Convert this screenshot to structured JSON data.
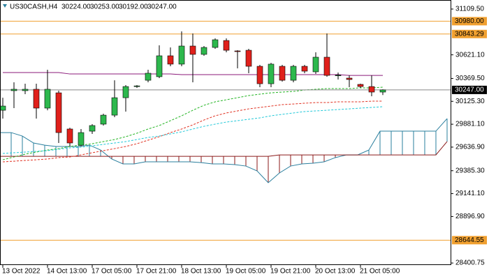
{
  "chart_data": {
    "type": "candlestick",
    "symbol": "US30CASH,H4",
    "header_values": [
      "30224.00",
      "30253.00",
      "30192.00",
      "30247.00"
    ],
    "categories": [
      "13 Oct 2022",
      null,
      null,
      null,
      "14 Oct 13:00",
      null,
      null,
      null,
      "17 Oct 05:00",
      null,
      null,
      null,
      "17 Oct 21:00",
      null,
      null,
      null,
      "18 Oct 13:00",
      null,
      null,
      null,
      "19 Oct 05:00",
      null,
      null,
      null,
      "19 Oct 21:00",
      null,
      null,
      null,
      "20 Oct 13:00",
      null,
      null,
      null,
      "21 Oct 05:00",
      null,
      null
    ],
    "open": [
      30030,
      30239,
      30239,
      30254,
      30053,
      30216,
      29830,
      29658,
      29807,
      29882,
      29978,
      30164,
      30283,
      30350,
      30388,
      30611,
      30522,
      30715,
      30626,
      30700,
      30774,
      30663,
      30670,
      30499,
      30313,
      30499,
      30350,
      30499,
      30440,
      30596,
      30402,
      30373,
      30306,
      30283,
      30224
    ],
    "high": [
      30164,
      30328,
      30313,
      30313,
      30462,
      30239,
      29844,
      29830,
      29882,
      29993,
      30350,
      30298,
      30298,
      30462,
      30722,
      30700,
      30871,
      30849,
      30715,
      30797,
      30797,
      30670,
      30685,
      30514,
      30536,
      30514,
      30514,
      30514,
      30648,
      30849,
      30432,
      30402,
      30313,
      30402,
      30253
    ],
    "low": [
      29941,
      30053,
      30202,
      29941,
      30030,
      29681,
      29644,
      29644,
      29778,
      29867,
      29956,
      30016,
      30269,
      30328,
      30373,
      30499,
      30499,
      30328,
      30611,
      30685,
      30648,
      30477,
      30425,
      30276,
      30276,
      30336,
      30328,
      30425,
      30417,
      30388,
      30358,
      30276,
      30269,
      30179,
      30192
    ],
    "close": [
      30075,
      30254,
      30254,
      30053,
      30254,
      29792,
      29681,
      29792,
      29867,
      29978,
      30164,
      30283,
      30290,
      30425,
      30611,
      30522,
      30715,
      30626,
      30700,
      30782,
      30670,
      30660,
      30499,
      30313,
      30522,
      30350,
      30499,
      30447,
      30596,
      30402,
      30405,
      30358,
      30283,
      30224,
      30247
    ],
    "up_color": "#2db84d",
    "down_color": "#e0201b",
    "overlays": [
      {
        "color": "#8b1a7a",
        "style": "solid",
        "values": [
          30432,
          30432,
          30432,
          30432,
          30432,
          30432,
          30417,
          30417,
          30417,
          30417,
          30417,
          30417,
          30417,
          30417,
          30417,
          30417,
          30410,
          30410,
          30410,
          30410,
          30410,
          30410,
          30410,
          30410,
          30410,
          30410,
          30410,
          30410,
          30410,
          30410,
          30410,
          30402,
          30402,
          30402,
          30402
        ]
      },
      {
        "color": "#22b422",
        "style": "dashed",
        "values": [
          29502,
          29532,
          29562,
          29584,
          29606,
          29621,
          29644,
          29658,
          29673,
          29696,
          29718,
          29748,
          29785,
          29830,
          29867,
          29919,
          29971,
          30030,
          30083,
          30120,
          30142,
          30164,
          30187,
          30202,
          30216,
          30224,
          30231,
          30246,
          30254,
          30261,
          30261,
          30261,
          30269,
          30269,
          30276
        ]
      },
      {
        "color": "#e03020",
        "style": "dashed",
        "values": [
          29480,
          29487,
          29495,
          29502,
          29510,
          29525,
          29532,
          29554,
          29577,
          29599,
          29621,
          29644,
          29673,
          29711,
          29748,
          29792,
          29830,
          29874,
          29926,
          29971,
          30001,
          30023,
          30045,
          30060,
          30075,
          30090,
          30097,
          30105,
          30112,
          30112,
          30120,
          30120,
          30120,
          30127,
          30127
        ]
      },
      {
        "color": "#20c8d8",
        "style": "dashed",
        "values": [
          29569,
          29577,
          29584,
          29592,
          29599,
          29614,
          29629,
          29636,
          29651,
          29666,
          29681,
          29696,
          29718,
          29740,
          29755,
          29778,
          29800,
          29830,
          29859,
          29882,
          29904,
          29919,
          29934,
          29949,
          29971,
          29986,
          30001,
          30016,
          30023,
          30030,
          30038,
          30045,
          30053,
          30060,
          30068
        ]
      }
    ],
    "cloud": {
      "span_a": {
        "color": "#2a7f9e",
        "values": [
          29792,
          29792,
          29755,
          29681,
          29658,
          29644,
          29644,
          29644,
          29658,
          29606,
          29510,
          29458,
          29458,
          29480,
          29480,
          29480,
          29480,
          29480,
          29472,
          29458,
          29458,
          29450,
          29435,
          29383,
          29257,
          29361,
          29435,
          29458,
          29465,
          29480,
          29525,
          29554,
          29554,
          29606,
          29807,
          29807,
          29807,
          29807,
          29807,
          29807,
          29941
        ]
      },
      "span_b": {
        "color": "#8b1a1a",
        "values": [
          29539,
          29539,
          29539,
          29539,
          29539,
          29539,
          29539,
          29539,
          29539,
          29539,
          29539,
          29539,
          29539,
          29539,
          29539,
          29539,
          29539,
          29539,
          29539,
          29539,
          29539,
          29539,
          29539,
          29539,
          29539,
          29554,
          29554,
          29554,
          29554,
          29554,
          29554,
          29554,
          29554,
          29554,
          29554,
          29554,
          29554,
          29554,
          29554,
          29554,
          29696
        ]
      }
    },
    "levels": [
      {
        "value": 30980,
        "label": "30980.00",
        "color": "#f0a030"
      },
      {
        "value": 30843.29,
        "label": "30843.29",
        "color": "#f0a030"
      },
      {
        "value": 28644.55,
        "label": "28644.55",
        "color": "#f0a030"
      }
    ],
    "current_price": {
      "value": 30247,
      "label": "30247.00",
      "color": "#000000"
    },
    "ylim": [
      28394,
      31206
    ],
    "yticks": [
      {
        "value": 31109.5,
        "label": "31109.50"
      },
      {
        "value": 30621.1,
        "label": "30621.10"
      },
      {
        "value": 30369.5,
        "label": "30369.50"
      },
      {
        "value": 30125.3,
        "label": "30125.30"
      },
      {
        "value": 29881.1,
        "label": "29881.10"
      },
      {
        "value": 29636.9,
        "label": "29636.90"
      },
      {
        "value": 29385.3,
        "label": "29385.30"
      },
      {
        "value": 29141.1,
        "label": "29141.10"
      },
      {
        "value": 28896.9,
        "label": "28896.90"
      },
      {
        "value": 28400.75,
        "label": "28400.75"
      }
    ]
  }
}
